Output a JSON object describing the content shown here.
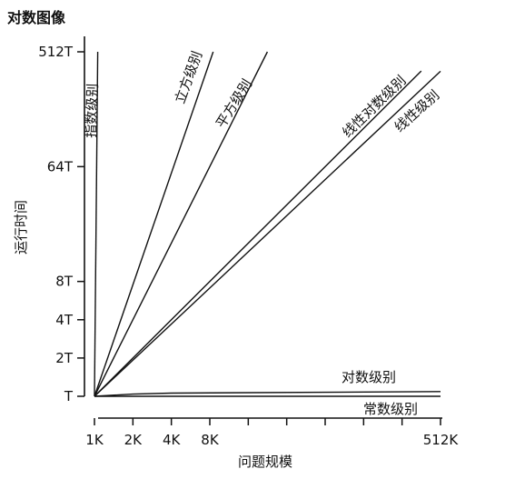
{
  "chart_data": {
    "type": "line",
    "title": "对数图像",
    "xlabel": "问题规模",
    "ylabel": "运行时间",
    "x_ticks": [
      "1K",
      "2K",
      "4K",
      "8K",
      "512K"
    ],
    "y_ticks": [
      "T",
      "2T",
      "4T",
      "8T",
      "64T",
      "512T"
    ],
    "x_scale": "log",
    "y_scale": "log",
    "grid": false,
    "series": [
      {
        "name": "指数级别",
        "x": [
          1,
          1.06
        ],
        "y": [
          1,
          512
        ]
      },
      {
        "name": "立方级别",
        "x": [
          1,
          8.5
        ],
        "y": [
          1,
          512
        ]
      },
      {
        "name": "平方级别",
        "x": [
          1,
          22.6
        ],
        "y": [
          1,
          512
        ]
      },
      {
        "name": "线性对数级别",
        "x": [
          1,
          362
        ],
        "y": [
          1,
          362
        ]
      },
      {
        "name": "线性级别",
        "x": [
          1,
          512
        ],
        "y": [
          1,
          360
        ]
      },
      {
        "name": "对数级别",
        "x": [
          1,
          2,
          4,
          512
        ],
        "y": [
          1,
          1.04,
          1.06,
          1.09
        ]
      },
      {
        "name": "常数级别",
        "x": [
          1,
          512
        ],
        "y": [
          1,
          1
        ]
      }
    ]
  }
}
